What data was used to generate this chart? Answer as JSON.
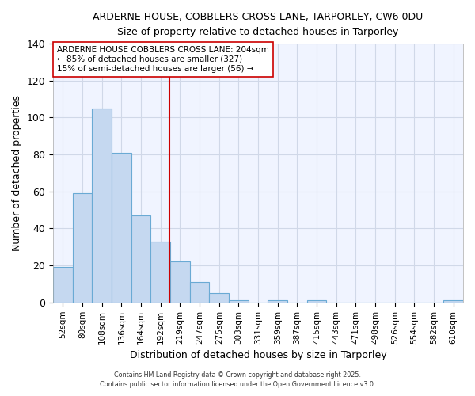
{
  "title": "ARDERNE HOUSE, COBBLERS CROSS LANE, TARPORLEY, CW6 0DU",
  "subtitle": "Size of property relative to detached houses in Tarporley",
  "xlabel": "Distribution of detached houses by size in Tarporley",
  "ylabel": "Number of detached properties",
  "bar_labels": [
    "52sqm",
    "80sqm",
    "108sqm",
    "136sqm",
    "164sqm",
    "192sqm",
    "219sqm",
    "247sqm",
    "275sqm",
    "303sqm",
    "331sqm",
    "359sqm",
    "387sqm",
    "415sqm",
    "443sqm",
    "471sqm",
    "498sqm",
    "526sqm",
    "554sqm",
    "582sqm",
    "610sqm"
  ],
  "bar_heights": [
    19,
    59,
    105,
    81,
    47,
    33,
    22,
    11,
    5,
    1,
    0,
    1,
    0,
    1,
    0,
    0,
    0,
    0,
    0,
    0,
    1
  ],
  "bar_color": "#c5d8f0",
  "bar_edge_color": "#6aaad4",
  "plot_bg_color": "#f0f4ff",
  "fig_bg_color": "#ffffff",
  "grid_color": "#d0d8e8",
  "vline_color": "#cc0000",
  "ylim": [
    0,
    140
  ],
  "yticks": [
    0,
    20,
    40,
    60,
    80,
    100,
    120,
    140
  ],
  "annotation_lines": [
    "ARDERNE HOUSE COBBLERS CROSS LANE: 204sqm",
    "← 85% of detached houses are smaller (327)",
    "15% of semi-detached houses are larger (56) →"
  ],
  "annotation_box_color": "#ffffff",
  "annotation_box_edge": "#cc0000",
  "footer_line1": "Contains HM Land Registry data © Crown copyright and database right 2025.",
  "footer_line2": "Contains public sector information licensed under the Open Government Licence v3.0."
}
